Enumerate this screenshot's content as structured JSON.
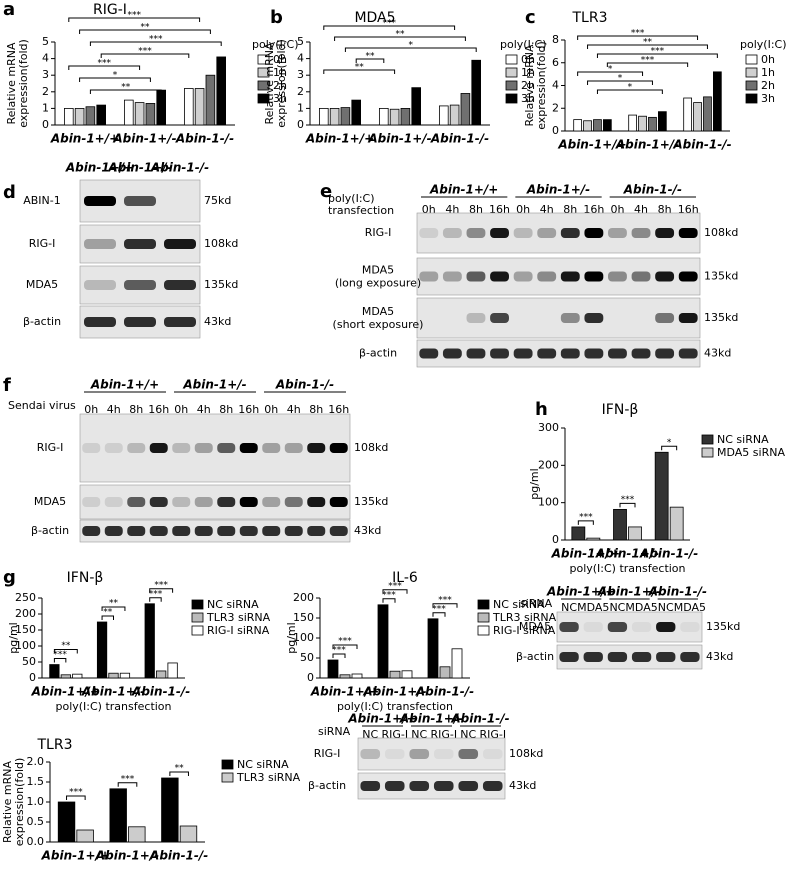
{
  "chart_data": [
    {
      "type": "bar",
      "panel": "a",
      "title": "RIG-I",
      "ylabel": [
        "Relative mRNA",
        "expression(fold)"
      ],
      "categories": [
        "Abin-1+/+",
        "Abin-1+/-",
        "Abin-1-/-"
      ],
      "legend_title": "poly(I:C)",
      "series": [
        {
          "name": "0h",
          "color": "#ffffff",
          "values": [
            1.0,
            1.5,
            2.2
          ]
        },
        {
          "name": "1h",
          "color": "#d0d0d0",
          "values": [
            1.0,
            1.35,
            2.2
          ]
        },
        {
          "name": "2h",
          "color": "#707070",
          "values": [
            1.1,
            1.3,
            3.0
          ]
        },
        {
          "name": "3h",
          "color": "#000000",
          "values": [
            1.2,
            2.1,
            4.1
          ]
        }
      ],
      "ylim": [
        0,
        5
      ],
      "yticks": [
        0,
        1,
        2,
        3,
        4,
        5
      ],
      "annotations": [
        "***",
        "**",
        "***",
        "***",
        "***",
        "*",
        "**"
      ]
    },
    {
      "type": "bar",
      "panel": "b",
      "title": "MDA5",
      "ylabel": [
        "Relative mRNA",
        "expression(fold)"
      ],
      "categories": [
        "Abin-1+/+",
        "Abin-1+/-",
        "Abin-1-/-"
      ],
      "legend_title": "poly(I:C)",
      "series": [
        {
          "name": "0h",
          "color": "#ffffff",
          "values": [
            1.0,
            1.0,
            1.15
          ]
        },
        {
          "name": "1h",
          "color": "#d0d0d0",
          "values": [
            1.0,
            0.95,
            1.2
          ]
        },
        {
          "name": "2h",
          "color": "#707070",
          "values": [
            1.05,
            1.0,
            1.9
          ]
        },
        {
          "name": "3h",
          "color": "#000000",
          "values": [
            1.5,
            2.25,
            3.9
          ]
        }
      ],
      "ylim": [
        0,
        5
      ],
      "yticks": [
        0,
        1,
        2,
        3,
        4,
        5
      ],
      "annotations": [
        "***",
        "**",
        "*",
        "**",
        "**"
      ]
    },
    {
      "type": "bar",
      "panel": "c",
      "title": "TLR3",
      "ylabel": [
        "Relative mRNA",
        "expression(fold)"
      ],
      "categories": [
        "Abin-1+/+",
        "Abin-1+/-",
        "Abin-1-/-"
      ],
      "legend_title": "poly(I:C)",
      "series": [
        {
          "name": "0h",
          "color": "#ffffff",
          "values": [
            1.0,
            1.4,
            2.9
          ]
        },
        {
          "name": "1h",
          "color": "#d0d0d0",
          "values": [
            0.9,
            1.3,
            2.5
          ]
        },
        {
          "name": "2h",
          "color": "#707070",
          "values": [
            1.0,
            1.2,
            3.0
          ]
        },
        {
          "name": "3h",
          "color": "#000000",
          "values": [
            1.0,
            1.7,
            5.2
          ]
        }
      ],
      "ylim": [
        0,
        8
      ],
      "yticks": [
        0,
        2,
        4,
        6,
        8
      ],
      "annotations": [
        "***",
        "**",
        "***",
        "***",
        "*",
        "*",
        "*"
      ]
    },
    {
      "type": "bar",
      "panel": "h",
      "title": "IFN-β",
      "ylabel": [
        "pg/ml"
      ],
      "xlabel": "poly(I:C) transfection",
      "categories": [
        "Abin-1+/+",
        "Abin-1+/-",
        "Abin-1-/-"
      ],
      "series": [
        {
          "name": "NC siRNA",
          "color": "#333333",
          "values": [
            35,
            82,
            235
          ]
        },
        {
          "name": "MDA5 siRNA",
          "color": "#cccccc",
          "values": [
            5,
            35,
            88
          ]
        }
      ],
      "ylim": [
        0,
        300
      ],
      "yticks": [
        0,
        100,
        200,
        300
      ],
      "group_annotations": [
        [
          "***"
        ],
        [
          "***"
        ],
        [
          "*"
        ]
      ]
    },
    {
      "type": "bar",
      "panel": "g",
      "title": "IFN-β",
      "ylabel": [
        "pg/ml"
      ],
      "xlabel": "poly(I:C) transfection",
      "categories": [
        "Abin-1+/+",
        "Abin-1+/-",
        "Abin-1-/-"
      ],
      "series": [
        {
          "name": "NC siRNA",
          "color": "#000000",
          "values": [
            42,
            175,
            232
          ]
        },
        {
          "name": "TLR3 siRNA",
          "color": "#bbbbbb",
          "values": [
            10,
            15,
            22
          ]
        },
        {
          "name": "RIG-I siRNA",
          "color": "#ffffff",
          "values": [
            12,
            15,
            47
          ]
        }
      ],
      "ylim": [
        0,
        250
      ],
      "yticks": [
        0,
        50,
        100,
        150,
        200,
        250
      ],
      "group_annotations": [
        [
          "***",
          "**"
        ],
        [
          "**",
          "**"
        ],
        [
          "***",
          "***"
        ]
      ]
    },
    {
      "type": "bar",
      "title": "IL-6",
      "ylabel": [
        "pg/ml"
      ],
      "xlabel": "poly(I:C) transfection",
      "categories": [
        "Abin-1+/+",
        "Abin-1+/-",
        "Abin-1-/-"
      ],
      "series": [
        {
          "name": "NC siRNA",
          "color": "#000000",
          "values": [
            45,
            183,
            148
          ]
        },
        {
          "name": "TLR3 siRNA",
          "color": "#bbbbbb",
          "values": [
            8,
            17,
            28
          ]
        },
        {
          "name": "RIG-I siRNA",
          "color": "#ffffff",
          "values": [
            10,
            18,
            73
          ]
        }
      ],
      "ylim": [
        0,
        200
      ],
      "yticks": [
        0,
        50,
        100,
        150,
        200
      ],
      "group_annotations": [
        [
          "***",
          "***"
        ],
        [
          "***",
          "***"
        ],
        [
          "***",
          "***"
        ]
      ]
    },
    {
      "type": "bar",
      "title": "TLR3",
      "ylabel": [
        "Relative mRNA",
        "expression(fold)"
      ],
      "categories": [
        "Abin-1+/+",
        "Abin-1+/-",
        "Abin-1-/-"
      ],
      "series": [
        {
          "name": "NC siRNA",
          "color": "#000000",
          "values": [
            1.0,
            1.33,
            1.6
          ]
        },
        {
          "name": "TLR3 siRNA",
          "color": "#cccccc",
          "values": [
            0.3,
            0.38,
            0.4
          ]
        }
      ],
      "ylim": [
        0,
        2
      ],
      "yticks": [
        {
          "value": 0,
          "label": "0.0"
        },
        0.5,
        {
          "value": 1,
          "label": "1.0"
        },
        1.5,
        {
          "value": 2,
          "label": "2.0"
        }
      ],
      "group_annotations": [
        [
          "***"
        ],
        [
          "***"
        ],
        [
          "**"
        ]
      ]
    }
  ],
  "blots": [
    {
      "panel": "d",
      "genotypes": [
        "Abin-1+/+",
        "Abin-1+/-",
        "Abin-1-/-"
      ],
      "rows": [
        {
          "label": "ABIN-1",
          "size": "75kd"
        },
        {
          "label": "RIG-I",
          "size": "108kd"
        },
        {
          "label": "MDA5",
          "size": "135kd"
        },
        {
          "label": "β-actin",
          "size": "43kd"
        }
      ]
    },
    {
      "panel": "e",
      "condition": [
        "poly(I:C)",
        "transfection"
      ],
      "genotypes": [
        "Abin-1+/+",
        "Abin-1+/-",
        "Abin-1-/-"
      ],
      "lanes": [
        "0h",
        "4h",
        "8h",
        "16h"
      ],
      "rows": [
        {
          "label": "RIG-I",
          "size": "108kd"
        },
        {
          "label": "MDA5",
          "note": "(long exposure)",
          "size": "135kd"
        },
        {
          "label": "MDA5",
          "note": "(short exposure)",
          "size": "135kd"
        },
        {
          "label": "β-actin",
          "size": "43kd"
        }
      ]
    },
    {
      "panel": "f",
      "condition": [
        "Sendai virus"
      ],
      "genotypes": [
        "Abin-1+/+",
        "Abin-1+/-",
        "Abin-1-/-"
      ],
      "lanes": [
        "0h",
        "4h",
        "8h",
        "16h"
      ],
      "rows": [
        {
          "label": "RIG-I",
          "size": "108kd"
        },
        {
          "label": "MDA5",
          "size": "135kd"
        },
        {
          "label": "β-actin",
          "size": "43kd"
        }
      ]
    },
    {
      "condition": [
        "siRNA"
      ],
      "genotypes": [
        "Abin-1+/+",
        "Abin-1+/-",
        "Abin-1-/-"
      ],
      "lanes": [
        "NC",
        "MDA5"
      ],
      "rows": [
        {
          "label": "MDA5",
          "size": "135kd"
        },
        {
          "label": "β-actin",
          "size": "43kd"
        }
      ]
    },
    {
      "condition": [
        "siRNA"
      ],
      "genotypes": [
        "Abin-1+/+",
        "Abin-1+/-",
        "Abin-1-/-"
      ],
      "lanes": [
        "NC",
        "RIG-I"
      ],
      "rows": [
        {
          "label": "RIG-I",
          "size": "108kd"
        },
        {
          "label": "β-actin",
          "size": "43kd"
        }
      ]
    }
  ]
}
